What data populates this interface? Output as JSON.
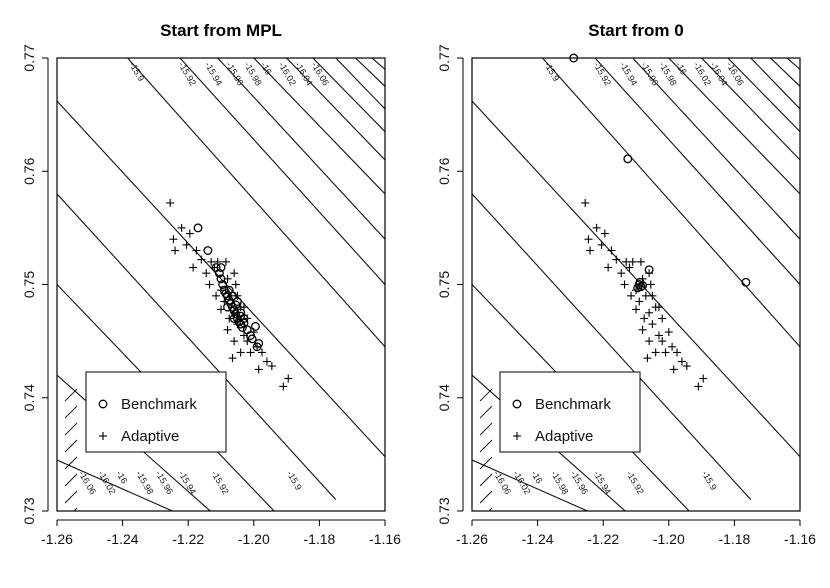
{
  "chart_data": [
    {
      "type": "scatter",
      "title": "Start from MPL",
      "xlim": [
        -1.26,
        -1.16
      ],
      "ylim": [
        0.73,
        0.77
      ],
      "xticks": [
        "-1.26",
        "-1.24",
        "-1.22",
        "-1.20",
        "-1.18",
        "-1.16"
      ],
      "yticks": [
        "0.73",
        "0.74",
        "0.75",
        "0.76",
        "0.77"
      ],
      "contour_levels": [
        "-15.9",
        "-15.92",
        "-15.94",
        "-15.96",
        "-15.98",
        "-16",
        "-16.02",
        "-16.04",
        "-16.06"
      ],
      "legend": {
        "position": "bottom-left",
        "entries": [
          {
            "symbol": "o",
            "label": "Benchmark"
          },
          {
            "symbol": "+",
            "label": "Adaptive"
          }
        ]
      },
      "series": [
        {
          "name": "Benchmark",
          "marker": "o",
          "points": [
            [
              -1.217,
              0.755
            ],
            [
              -1.214,
              0.753
            ],
            [
              -1.2115,
              0.7515
            ],
            [
              -1.2105,
              0.751
            ],
            [
              -1.21,
              0.7505
            ],
            [
              -1.2095,
              0.75
            ],
            [
              -1.209,
              0.7495
            ],
            [
              -1.2085,
              0.7492
            ],
            [
              -1.208,
              0.749
            ],
            [
              -1.2075,
              0.7486
            ],
            [
              -1.207,
              0.7483
            ],
            [
              -1.2065,
              0.748
            ],
            [
              -1.206,
              0.7477
            ],
            [
              -1.2055,
              0.7474
            ],
            [
              -1.205,
              0.747
            ],
            [
              -1.2045,
              0.7467
            ],
            [
              -1.204,
              0.7465
            ],
            [
              -1.2035,
              0.7462
            ],
            [
              -1.208,
              0.748
            ],
            [
              -1.206,
              0.747
            ],
            [
              -1.205,
              0.7485
            ],
            [
              -1.204,
              0.7475
            ],
            [
              -1.203,
              0.747
            ],
            [
              -1.202,
              0.746
            ],
            [
              -1.201,
              0.7455
            ],
            [
              -1.1995,
              0.7463
            ],
            [
              -1.1985,
              0.7448
            ],
            [
              -1.199,
              0.7445
            ],
            [
              -1.2005,
              0.7452
            ],
            [
              -1.2075,
              0.7495
            ],
            [
              -1.2065,
              0.749
            ],
            [
              -1.2055,
              0.7482
            ],
            [
              -1.204,
              0.7472
            ],
            [
              -1.203,
              0.7466
            ],
            [
              -1.21,
              0.7515
            ]
          ]
        },
        {
          "name": "Adaptive",
          "marker": "+",
          "points": [
            [
              -1.2255,
              0.7572
            ],
            [
              -1.222,
              0.755
            ],
            [
              -1.2195,
              0.7545
            ],
            [
              -1.2245,
              0.754
            ],
            [
              -1.2205,
              0.7535
            ],
            [
              -1.2175,
              0.753
            ],
            [
              -1.224,
              0.753
            ],
            [
              -1.2185,
              0.7515
            ],
            [
              -1.213,
              0.752
            ],
            [
              -1.2145,
              0.751
            ],
            [
              -1.212,
              0.7515
            ],
            [
              -1.211,
              0.752
            ],
            [
              -1.2135,
              0.75
            ],
            [
              -1.21,
              0.7495
            ],
            [
              -1.206,
              0.751
            ],
            [
              -1.208,
              0.7505
            ],
            [
              -1.2115,
              0.749
            ],
            [
              -1.209,
              0.7485
            ],
            [
              -1.2055,
              0.75
            ],
            [
              -1.207,
              0.749
            ],
            [
              -1.21,
              0.7478
            ],
            [
              -1.206,
              0.7475
            ],
            [
              -1.204,
              0.748
            ],
            [
              -1.2075,
              0.747
            ],
            [
              -1.202,
              0.747
            ],
            [
              -1.205,
              0.7465
            ],
            [
              -1.208,
              0.746
            ],
            [
              -1.203,
              0.7455
            ],
            [
              -1.2,
              0.7458
            ],
            [
              -1.206,
              0.745
            ],
            [
              -1.199,
              0.7445
            ],
            [
              -1.204,
              0.744
            ],
            [
              -1.2065,
              0.7435
            ],
            [
              -1.201,
              0.744
            ],
            [
              -1.1975,
              0.744
            ],
            [
              -1.196,
              0.7432
            ],
            [
              -1.1985,
              0.7425
            ],
            [
              -1.1945,
              0.7428
            ],
            [
              -1.191,
              0.741
            ],
            [
              -1.1895,
              0.7417
            ],
            [
              -1.202,
              0.745
            ],
            [
              -1.2085,
              0.752
            ],
            [
              -1.216,
              0.7522
            ],
            [
              -1.205,
              0.749
            ],
            [
              -1.203,
              0.748
            ]
          ]
        }
      ]
    },
    {
      "type": "scatter",
      "title": "Start from 0",
      "xlim": [
        -1.26,
        -1.16
      ],
      "ylim": [
        0.73,
        0.77
      ],
      "xticks": [
        "-1.26",
        "-1.24",
        "-1.22",
        "-1.20",
        "-1.18",
        "-1.16"
      ],
      "yticks": [
        "0.73",
        "0.74",
        "0.75",
        "0.76",
        "0.77"
      ],
      "contour_levels": [
        "-15.9",
        "-15.92",
        "-15.94",
        "-15.96",
        "-15.98",
        "-16",
        "-16.02",
        "-16.04",
        "-16.06"
      ],
      "legend": {
        "position": "bottom-left",
        "entries": [
          {
            "symbol": "o",
            "label": "Benchmark"
          },
          {
            "symbol": "+",
            "label": "Adaptive"
          }
        ]
      },
      "series": [
        {
          "name": "Benchmark",
          "marker": "o",
          "points": [
            [
              -1.229,
              0.77
            ],
            [
              -1.2125,
              0.7611
            ],
            [
              -1.1765,
              0.7502
            ],
            [
              -1.206,
              0.7513
            ],
            [
              -1.209,
              0.75
            ],
            [
              -1.2085,
              0.7498
            ],
            [
              -1.2095,
              0.7497
            ],
            [
              -1.2088,
              0.7502
            ],
            [
              -1.208,
              0.7499
            ]
          ]
        },
        {
          "name": "Adaptive",
          "marker": "+",
          "points": [
            [
              -1.2255,
              0.7572
            ],
            [
              -1.222,
              0.755
            ],
            [
              -1.2195,
              0.7545
            ],
            [
              -1.2245,
              0.754
            ],
            [
              -1.2205,
              0.7535
            ],
            [
              -1.2175,
              0.753
            ],
            [
              -1.224,
              0.753
            ],
            [
              -1.2185,
              0.7515
            ],
            [
              -1.213,
              0.752
            ],
            [
              -1.2145,
              0.751
            ],
            [
              -1.212,
              0.7515
            ],
            [
              -1.211,
              0.752
            ],
            [
              -1.2135,
              0.75
            ],
            [
              -1.21,
              0.7495
            ],
            [
              -1.206,
              0.751
            ],
            [
              -1.208,
              0.7505
            ],
            [
              -1.2115,
              0.749
            ],
            [
              -1.209,
              0.7485
            ],
            [
              -1.2055,
              0.75
            ],
            [
              -1.207,
              0.749
            ],
            [
              -1.21,
              0.7478
            ],
            [
              -1.206,
              0.7475
            ],
            [
              -1.204,
              0.748
            ],
            [
              -1.2075,
              0.747
            ],
            [
              -1.202,
              0.747
            ],
            [
              -1.205,
              0.7465
            ],
            [
              -1.208,
              0.746
            ],
            [
              -1.203,
              0.7455
            ],
            [
              -1.2,
              0.7458
            ],
            [
              -1.206,
              0.745
            ],
            [
              -1.199,
              0.7445
            ],
            [
              -1.204,
              0.744
            ],
            [
              -1.2065,
              0.7435
            ],
            [
              -1.201,
              0.744
            ],
            [
              -1.1975,
              0.744
            ],
            [
              -1.196,
              0.7432
            ],
            [
              -1.1985,
              0.7425
            ],
            [
              -1.1945,
              0.7428
            ],
            [
              -1.191,
              0.741
            ],
            [
              -1.1895,
              0.7417
            ],
            [
              -1.202,
              0.745
            ],
            [
              -1.2085,
              0.752
            ],
            [
              -1.216,
              0.7522
            ],
            [
              -1.205,
              0.749
            ],
            [
              -1.203,
              0.748
            ]
          ]
        }
      ]
    }
  ]
}
